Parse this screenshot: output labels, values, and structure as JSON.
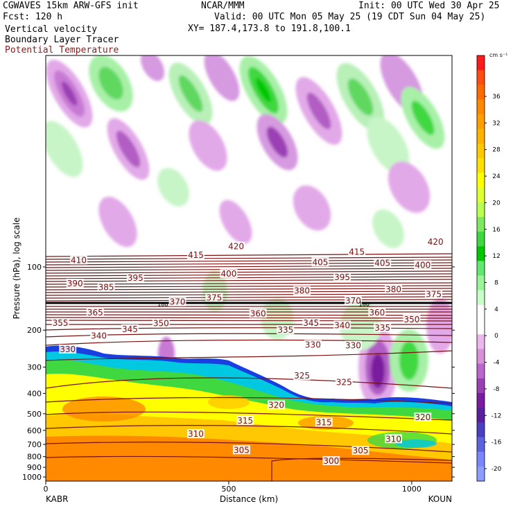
{
  "header": {
    "model": "CGWAVES 15km ARW-GFS init",
    "fcst": "Fcst:  120 h",
    "field1": "Vertical velocity",
    "field2": "Boundary Layer Tracer",
    "field3": "Potential Temperature",
    "org": "NCAR/MMM",
    "init": "Init: 00 UTC Wed 30 Apr 25",
    "valid": "Valid: 00 UTC Mon 05 May 25 (19 CDT Sun 04 May 25)",
    "xy": "XY= 187.4,173.8 to 191.8,100.1"
  },
  "chart_data": {
    "type": "heatmap",
    "title": "Vertical velocity / Boundary Layer Tracer / Potential Temperature cross section",
    "xlabel": "Distance (km)",
    "ylabel": "Pressure (hPa), log scale",
    "x_ticks": [
      0,
      500,
      1000
    ],
    "xlim": [
      0,
      1110
    ],
    "y_ticks": [
      100,
      200,
      300,
      400,
      500,
      600,
      700,
      800,
      900,
      1000
    ],
    "y_scale": "log",
    "x_endpoints": [
      "KABR",
      "KOUN"
    ],
    "colorbar": {
      "unit": "cm s⁻¹",
      "labels": [
        "36",
        "32",
        "28",
        "24",
        "20",
        "16",
        "12",
        "8",
        "4",
        "0",
        "-4",
        "-8",
        "-12",
        "-16",
        "-20"
      ],
      "colors": [
        "#ff1a1a",
        "#ff4d10",
        "#ff6a00",
        "#ff8800",
        "#ff9e00",
        "#ffb300",
        "#ffc800",
        "#ffe000",
        "#ffff00",
        "#e0ff30",
        "#b8ff50",
        "#7de860",
        "#40d840",
        "#00c800",
        "#60e870",
        "#9af59a",
        "#c8ffc8",
        "#ffffff",
        "#ffffff",
        "#ecb8ec",
        "#d890d8",
        "#bb66cc",
        "#9b3fb5",
        "#7a1c9e",
        "#5a1f9e",
        "#4a3fc0",
        "#5d62e0",
        "#7a86ff",
        "#8c9cff"
      ]
    },
    "theta_labels": [
      {
        "v": "410",
        "x": 90,
        "p": 93
      },
      {
        "v": "415",
        "x": 410,
        "p": 88
      },
      {
        "v": "420",
        "x": 520,
        "p": 80
      },
      {
        "v": "415",
        "x": 850,
        "p": 85
      },
      {
        "v": "420",
        "x": 1065,
        "p": 76
      },
      {
        "v": "390",
        "x": 80,
        "p": 120
      },
      {
        "v": "385",
        "x": 165,
        "p": 125
      },
      {
        "v": "395",
        "x": 245,
        "p": 113
      },
      {
        "v": "400",
        "x": 500,
        "p": 108
      },
      {
        "v": "405",
        "x": 750,
        "p": 95
      },
      {
        "v": "395",
        "x": 810,
        "p": 112
      },
      {
        "v": "405",
        "x": 920,
        "p": 96
      },
      {
        "v": "400",
        "x": 1030,
        "p": 98
      },
      {
        "v": "375",
        "x": 460,
        "p": 140
      },
      {
        "v": "380",
        "x": 700,
        "p": 130
      },
      {
        "v": "380",
        "x": 950,
        "p": 128
      },
      {
        "v": "375",
        "x": 1060,
        "p": 135
      },
      {
        "v": "370",
        "x": 360,
        "p": 147
      },
      {
        "v": "370",
        "x": 840,
        "p": 145
      },
      {
        "v": "365",
        "x": 135,
        "p": 165
      },
      {
        "v": "360",
        "x": 580,
        "p": 167
      },
      {
        "v": "360",
        "x": 905,
        "p": 165
      },
      {
        "v": "355",
        "x": 40,
        "p": 185
      },
      {
        "v": "345",
        "x": 230,
        "p": 198
      },
      {
        "v": "350",
        "x": 315,
        "p": 186
      },
      {
        "v": "345",
        "x": 725,
        "p": 185
      },
      {
        "v": "340",
        "x": 810,
        "p": 190
      },
      {
        "v": "335",
        "x": 920,
        "p": 195
      },
      {
        "v": "350",
        "x": 1000,
        "p": 178
      },
      {
        "v": "340",
        "x": 145,
        "p": 213
      },
      {
        "v": "335",
        "x": 655,
        "p": 200
      },
      {
        "v": "330",
        "x": 730,
        "p": 235
      },
      {
        "v": "330",
        "x": 840,
        "p": 237
      },
      {
        "v": "330",
        "x": 60,
        "p": 247
      },
      {
        "v": "325",
        "x": 700,
        "p": 330
      },
      {
        "v": "325",
        "x": 815,
        "p": 355
      },
      {
        "v": "320",
        "x": 630,
        "p": 455
      },
      {
        "v": "320",
        "x": 1030,
        "p": 520
      },
      {
        "v": "315",
        "x": 545,
        "p": 540
      },
      {
        "v": "315",
        "x": 760,
        "p": 550
      },
      {
        "v": "310",
        "x": 410,
        "p": 625
      },
      {
        "v": "310",
        "x": 950,
        "p": 660
      },
      {
        "v": "305",
        "x": 535,
        "p": 745
      },
      {
        "v": "305",
        "x": 860,
        "p": 750
      },
      {
        "v": "300",
        "x": 780,
        "p": 840
      }
    ],
    "tropopause_labels": [
      {
        "v": "180",
        "x": 320,
        "p": 150
      },
      {
        "v": "180",
        "x": 870,
        "p": 150
      }
    ]
  }
}
